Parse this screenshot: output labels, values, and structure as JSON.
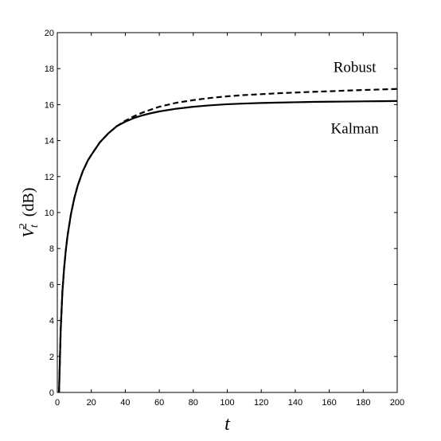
{
  "chart_data": {
    "type": "line",
    "title": "",
    "xlabel": "t",
    "ylabel": "V_t^2 (dB)",
    "ylabel_parts": {
      "base": "V",
      "sub": "t",
      "sup": "2",
      "unit": "(dB)"
    },
    "xlim": [
      0,
      200
    ],
    "ylim": [
      0,
      20
    ],
    "xticks": [
      0,
      20,
      40,
      60,
      80,
      100,
      120,
      140,
      160,
      180,
      200
    ],
    "yticks": [
      0,
      2,
      4,
      6,
      8,
      10,
      12,
      14,
      16,
      18,
      20
    ],
    "grid": false,
    "legend": "none",
    "annotations": [
      {
        "text": "Robust",
        "x": 175,
        "y": 17.8
      },
      {
        "text": "Kalman",
        "x": 175,
        "y": 14.4
      }
    ],
    "series": [
      {
        "name": "Robust",
        "style": "dashed",
        "color": "#000000",
        "x": [
          1,
          2,
          3,
          4,
          5,
          6,
          8,
          10,
          12,
          15,
          18,
          20,
          25,
          30,
          35,
          40,
          45,
          50,
          55,
          60,
          70,
          80,
          90,
          100,
          110,
          120,
          130,
          140,
          150,
          160,
          170,
          180,
          190,
          200
        ],
        "y": [
          0,
          3.5,
          5.6,
          6.9,
          7.9,
          8.7,
          9.9,
          10.8,
          11.5,
          12.3,
          12.9,
          13.2,
          13.9,
          14.4,
          14.8,
          15.1,
          15.35,
          15.55,
          15.72,
          15.88,
          16.1,
          16.25,
          16.37,
          16.46,
          16.53,
          16.58,
          16.63,
          16.67,
          16.71,
          16.74,
          16.78,
          16.81,
          16.84,
          16.87
        ]
      },
      {
        "name": "Kalman",
        "style": "solid",
        "color": "#000000",
        "x": [
          1,
          2,
          3,
          4,
          5,
          6,
          8,
          10,
          12,
          15,
          18,
          20,
          25,
          30,
          35,
          40,
          45,
          50,
          55,
          60,
          70,
          80,
          90,
          100,
          110,
          120,
          130,
          140,
          150,
          160,
          170,
          180,
          190,
          200
        ],
        "y": [
          0,
          3.5,
          5.6,
          6.9,
          7.9,
          8.7,
          9.9,
          10.8,
          11.5,
          12.3,
          12.9,
          13.2,
          13.9,
          14.4,
          14.8,
          15.05,
          15.25,
          15.4,
          15.52,
          15.62,
          15.77,
          15.88,
          15.96,
          16.02,
          16.06,
          16.09,
          16.11,
          16.13,
          16.15,
          16.16,
          16.17,
          16.18,
          16.19,
          16.2
        ]
      }
    ]
  }
}
